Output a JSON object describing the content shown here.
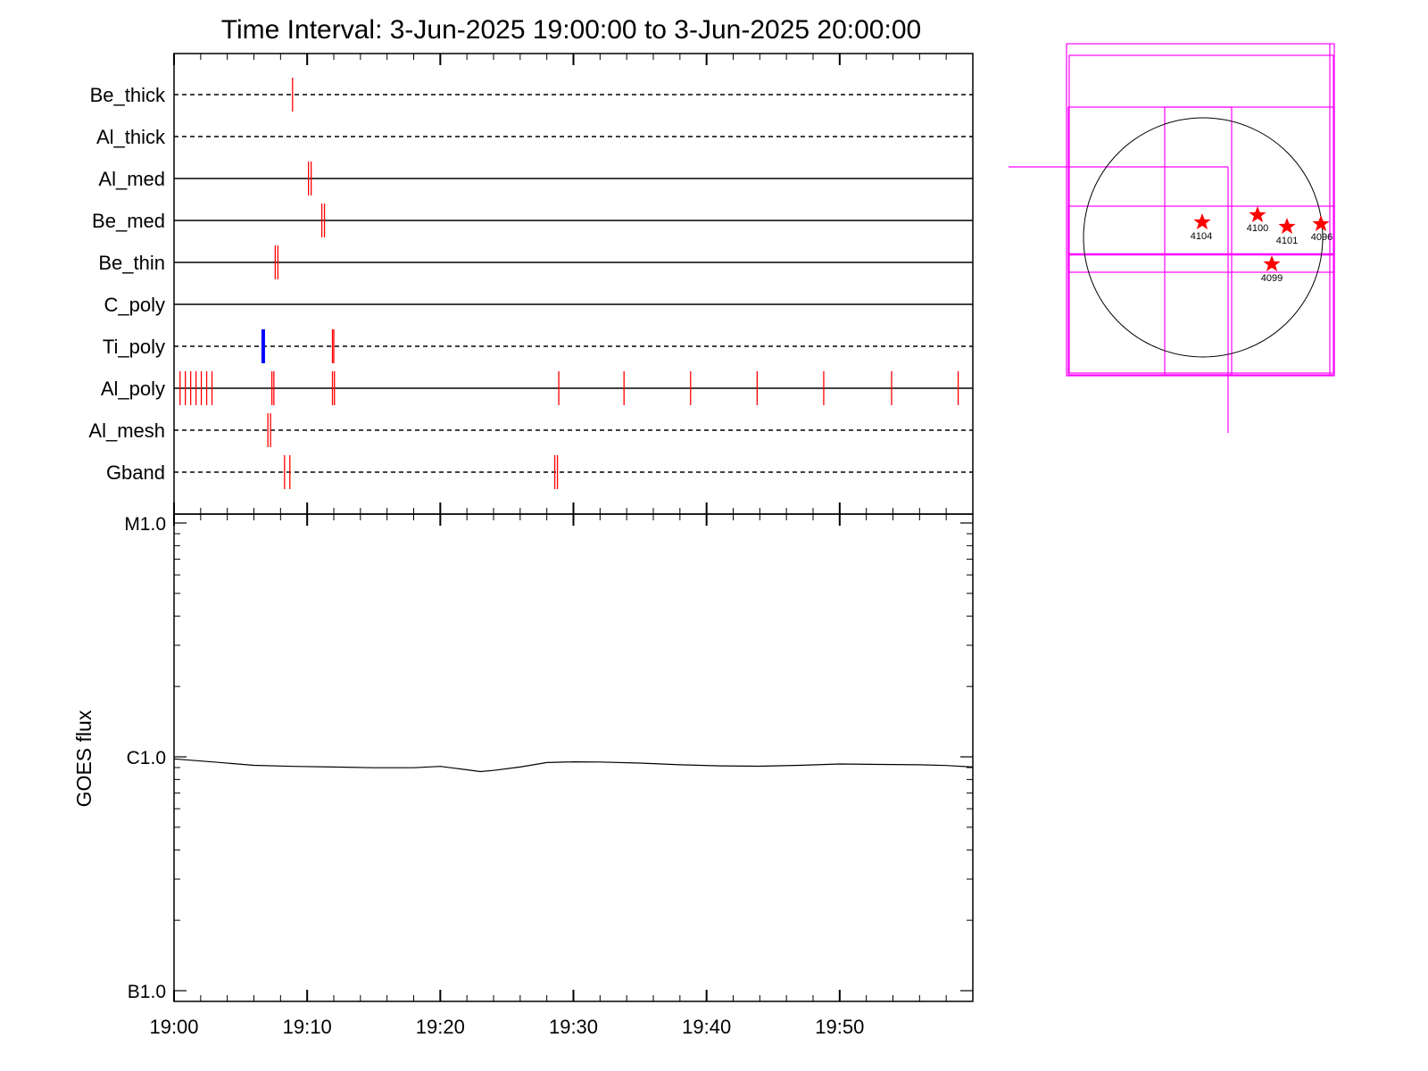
{
  "title": "Time Interval:  3-Jun-2025 19:00:00 to  3-Jun-2025 20:00:00",
  "colors": {
    "axis": "#000000",
    "event": "#ff0000",
    "highlight": "#0000ff",
    "fov": "#ff00ff",
    "sunLimb": "#000000",
    "star": "#ff0000"
  },
  "chart_data": [
    {
      "type": "timeline",
      "title": "Time Interval:  3-Jun-2025 19:00:00 to  3-Jun-2025 20:00:00",
      "x_range_minutes": [
        0,
        60
      ],
      "x_ticks": [
        {
          "min": 0,
          "label": "19:00"
        },
        {
          "min": 10,
          "label": "19:10"
        },
        {
          "min": 20,
          "label": "19:20"
        },
        {
          "min": 30,
          "label": "19:30"
        },
        {
          "min": 40,
          "label": "19:40"
        },
        {
          "min": 50,
          "label": "19:50"
        }
      ],
      "channels": [
        {
          "name": "Be_thick",
          "style": "dashed",
          "events": [
            8.9
          ]
        },
        {
          "name": "Al_thick",
          "style": "dashed",
          "events": []
        },
        {
          "name": "Al_med",
          "style": "solid",
          "events": [
            10.1,
            10.3
          ]
        },
        {
          "name": "Be_med",
          "style": "solid",
          "events": [
            11.1,
            11.3
          ]
        },
        {
          "name": "Be_thin",
          "style": "solid",
          "events": [
            7.6,
            7.8
          ]
        },
        {
          "name": "C_poly",
          "style": "solid",
          "events": []
        },
        {
          "name": "Ti_poly",
          "style": "dashed",
          "events": [
            11.9,
            12.0
          ],
          "highlight_events": [
            6.7
          ]
        },
        {
          "name": "Al_poly",
          "style": "solid",
          "events": [
            0.45,
            0.85,
            1.25,
            1.65,
            2.05,
            2.45,
            2.85,
            7.35,
            7.5,
            11.9,
            12.05,
            28.9,
            33.8,
            38.8,
            43.8,
            48.8,
            53.9,
            58.9
          ]
        },
        {
          "name": "Al_mesh",
          "style": "dashed",
          "events": [
            7.05,
            7.25
          ]
        },
        {
          "name": "Gband",
          "style": "dashed",
          "events": [
            8.3,
            8.7,
            28.6,
            28.8
          ]
        }
      ]
    },
    {
      "type": "line",
      "ylabel": "GOES flux",
      "yscale": "log",
      "y_ticks": [
        {
          "value": 1e-05,
          "label": "M1.0"
        },
        {
          "value": 1e-06,
          "label": "C1.0"
        },
        {
          "value": 1e-07,
          "label": "B1.0"
        }
      ],
      "ylim": [
        1e-07,
        1e-05
      ],
      "x_range_minutes": [
        0,
        60
      ],
      "series": [
        {
          "x_minutes": [
            0,
            3,
            6,
            9,
            12,
            15,
            18,
            20,
            22,
            23,
            24,
            26,
            28,
            30,
            32,
            35,
            38,
            41,
            44,
            47,
            50,
            53,
            56,
            58,
            60
          ],
          "y": [
            9.8e-07,
            9.5e-07,
            9.2e-07,
            9.1e-07,
            9.05e-07,
            8.98e-07,
            8.98e-07,
            9.1e-07,
            8.8e-07,
            8.65e-07,
            8.75e-07,
            9.05e-07,
            9.45e-07,
            9.52e-07,
            9.5e-07,
            9.4e-07,
            9.25e-07,
            9.15e-07,
            9.12e-07,
            9.2e-07,
            9.32e-07,
            9.28e-07,
            9.25e-07,
            9.18e-07,
            9.05e-07
          ]
        }
      ]
    },
    {
      "type": "map",
      "regions": [
        "4104",
        "4100",
        "4101",
        "4096",
        "4099"
      ]
    }
  ]
}
